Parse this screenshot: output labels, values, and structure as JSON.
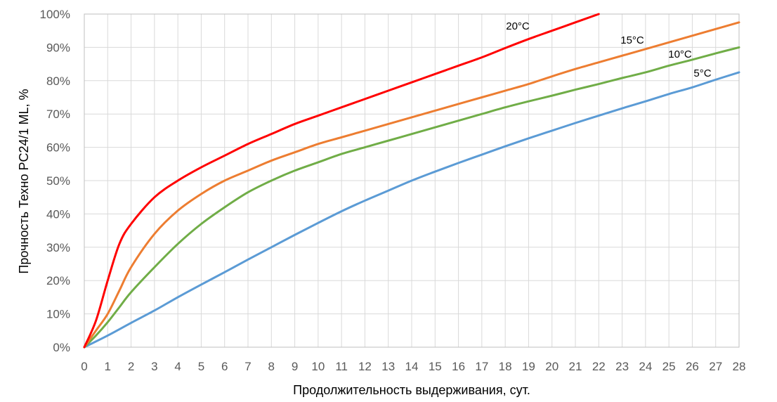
{
  "chart_data": {
    "type": "line",
    "title": "",
    "xlabel": "Продолжительность выдерживания, сут.",
    "ylabel": "Прочность Техно PC24/1 ML, %",
    "xlim": [
      0,
      28
    ],
    "ylim": [
      0,
      100
    ],
    "x_ticks": [
      "0",
      "1",
      "2",
      "3",
      "4",
      "5",
      "6",
      "7",
      "8",
      "9",
      "10",
      "11",
      "12",
      "13",
      "14",
      "15",
      "16",
      "17",
      "18",
      "19",
      "20",
      "21",
      "22",
      "23",
      "24",
      "25",
      "26",
      "27",
      "28"
    ],
    "y_ticks": [
      "0%",
      "10%",
      "20%",
      "30%",
      "40%",
      "50%",
      "60%",
      "70%",
      "80%",
      "90%",
      "100%"
    ],
    "grid": true,
    "legend": "none",
    "series": [
      {
        "name": "20°C",
        "color": "#ff0000",
        "x": [
          0,
          0.5,
          1,
          1.5,
          2,
          3,
          4,
          5,
          6,
          7,
          8,
          9,
          10,
          11,
          12,
          13,
          14,
          15,
          16,
          17,
          18,
          19,
          20,
          21,
          22
        ],
        "y": [
          0,
          8,
          20,
          31,
          37,
          45,
          50,
          54,
          57.5,
          61,
          64,
          67,
          69.5,
          72,
          74.5,
          77,
          79.5,
          82,
          84.5,
          87,
          89.8,
          92.5,
          95,
          97.5,
          100
        ]
      },
      {
        "name": "15°C",
        "color": "#ed7d31",
        "x": [
          0,
          0.5,
          1,
          1.5,
          2,
          3,
          4,
          5,
          6,
          7,
          8,
          9,
          10,
          11,
          12,
          13,
          14,
          15,
          16,
          17,
          18,
          19,
          20,
          21,
          22,
          23,
          24,
          25,
          26,
          27,
          28
        ],
        "y": [
          0,
          5,
          10,
          17,
          24,
          34,
          41,
          46,
          50,
          53,
          56,
          58.5,
          61,
          63,
          65,
          67,
          69,
          71,
          73,
          75,
          77,
          79,
          81.3,
          83.5,
          85.5,
          87.5,
          89.5,
          91.5,
          93.5,
          95.5,
          97.5
        ]
      },
      {
        "name": "10°C",
        "color": "#70ad47",
        "x": [
          0,
          0.5,
          1,
          1.5,
          2,
          3,
          4,
          5,
          6,
          7,
          8,
          9,
          10,
          11,
          12,
          13,
          14,
          15,
          16,
          17,
          18,
          19,
          20,
          21,
          22,
          23,
          24,
          25,
          26,
          27,
          28
        ],
        "y": [
          0,
          3.5,
          7.5,
          12,
          16.5,
          24,
          31,
          37,
          42,
          46.5,
          50,
          53,
          55.5,
          58,
          60,
          62,
          64,
          66,
          68,
          70,
          72,
          73.8,
          75.5,
          77.3,
          79,
          80.8,
          82.5,
          84.5,
          86.3,
          88.2,
          90
        ]
      },
      {
        "name": "5°C",
        "color": "#5b9bd5",
        "x": [
          0,
          1,
          2,
          3,
          4,
          5,
          6,
          7,
          8,
          9,
          10,
          11,
          12,
          13,
          14,
          15,
          16,
          17,
          18,
          19,
          20,
          21,
          22,
          23,
          24,
          25,
          26,
          27,
          28
        ],
        "y": [
          0,
          3.5,
          7.3,
          11,
          15,
          18.8,
          22.5,
          26.3,
          30,
          33.7,
          37.3,
          40.8,
          44,
          47,
          50,
          52.7,
          55.3,
          57.8,
          60.3,
          62.7,
          65,
          67.3,
          69.5,
          71.7,
          73.8,
          76,
          78,
          80.3,
          82.5
        ]
      }
    ]
  }
}
